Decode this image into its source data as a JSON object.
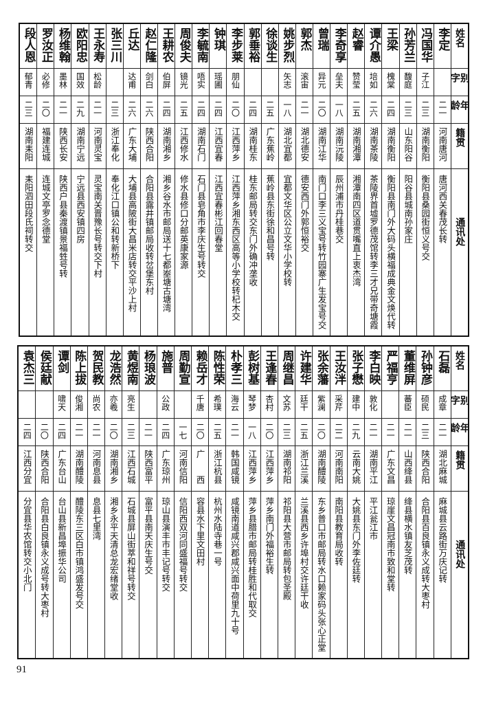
{
  "headers": {
    "name": "姓名",
    "alias": "别字",
    "age": "年龄",
    "native": "籍贯",
    "address": "通讯处"
  },
  "top_table": [
    {
      "name": "李定",
      "alias": "",
      "age": "二一",
      "native": "河南唐河",
      "address": "唐河西关春茂长转"
    },
    {
      "name": "冯国华",
      "alias": "子江",
      "age": "二三",
      "native": "湖南衡阳",
      "address": "衡阳县桑园街恒义号交"
    },
    {
      "name": "孙芳兰",
      "alias": "馥庭",
      "age": "二三",
      "native": "山东阳谷",
      "address": "阳谷县城南孙家庄"
    },
    {
      "name": "王梁",
      "alias": "槐棠",
      "age": "二四",
      "native": "湖南衡阳",
      "address": "衡阳县南门外大码头横福成典金文焕代转"
    },
    {
      "name": "谭介愚",
      "alias": "培如",
      "age": "二六",
      "native": "湖南茶陵",
      "address": "茶陵界首墟罗德茂馆转李三才兄带奇塘霞"
    },
    {
      "name": "赵睿",
      "alias": "赞莹",
      "age": "二五",
      "native": "湖南湘潭",
      "address": "湘潭南四区道贯嘴直上衷杰湾"
    },
    {
      "name": "李奇享",
      "alias": "垒夫",
      "age": "一八",
      "native": "湖南沅陵",
      "address": "辰州浦市丹桂巷交"
    },
    {
      "name": "曾瑞",
      "alias": "异元",
      "age": "二〇",
      "native": "湖南江华",
      "address": "南门口李三义宝号转竹园寨广生发宝号交"
    },
    {
      "name": "郭杰",
      "alias": "滚宙",
      "age": "二一",
      "native": "湖北德安",
      "address": "德安西门外郭恒裕交"
    },
    {
      "name": "姚步烈",
      "alias": "矢志",
      "age": "一八",
      "native": "湖北宜都",
      "address": "宜都文华区公立文华小学校转"
    },
    {
      "name": "徐谈生",
      "alias": "",
      "age": "二五",
      "native": "广东蕉岭",
      "address": "蕉岭县东街徐和昌号转"
    },
    {
      "name": "郭垂裕",
      "alias": "",
      "age": "二四",
      "native": "湖南桂东",
      "address": "桂东邮局转交东门外确冲垄收"
    },
    {
      "name": "李步莱",
      "alias": "朋仙",
      "age": "二〇",
      "native": "江西萍乡",
      "address": "江西萍乡湘东西区高等小学校转杞木交"
    },
    {
      "name": "钟琪",
      "alias": "瑶圃",
      "age": "二四",
      "native": "江西宜春",
      "address": "江西宜春彬江回春堂"
    },
    {
      "name": "李毓南",
      "alias": "唔实",
      "age": "二四",
      "native": "湖南石门",
      "address": "石门县皂角市李庆生号转交"
    },
    {
      "name": "周俊夫",
      "alias": "镜光",
      "age": "二五",
      "native": "江西修水",
      "address": "修水县修口分邮英康家源"
    },
    {
      "name": "王耕农",
      "alias": "伯屏",
      "age": "二四",
      "native": "湖南湘乡",
      "address": "湘乡谷水市邮局送十七都峚塘古塘湾"
    },
    {
      "name": "赵仁隆",
      "alias": "剑白",
      "age": "二六",
      "native": "陕西合阳",
      "address": "合阳县露井镇邮局收转岔堡东村"
    },
    {
      "name": "丘达",
      "alias": "达甫",
      "age": "二六",
      "native": "广东大埔",
      "address": "大埔县高陂街大昌米店转交平沙上村"
    },
    {
      "name": "张三川",
      "alias": "",
      "age": "二三",
      "native": "浙江奉化",
      "address": "奉化江口镇公和转新桥下"
    },
    {
      "name": "王永寿",
      "alias": "松龄",
      "age": "二一",
      "native": "河南灵宝",
      "address": "灵宝南关晋豫长号转交下村"
    },
    {
      "name": "欧阳忠",
      "alias": "国效",
      "age": "二九",
      "native": "湖南宁远",
      "address": "宁远县西安镇四房"
    },
    {
      "name": "杨维翰",
      "alias": "墨林",
      "age": "二一",
      "native": "陕西长安",
      "address": "陕西户县秦渡镇景福甡号转"
    },
    {
      "name": "罗汝正",
      "alias": "必修",
      "age": "二〇",
      "native": "福建连城",
      "address": "连城文亭罗念德堂"
    },
    {
      "name": "段人恩",
      "alias": "郁青",
      "age": "二三",
      "native": "湖南耒阳",
      "address": "耒阳泗田段氏祠转交"
    }
  ],
  "bottom_table": [
    {
      "name": "石磊",
      "alias": "成章",
      "age": "二一",
      "native": "湖北麻城",
      "address": "麻城县云路街万庆记转"
    },
    {
      "name": "孙钟彦",
      "alias": "硕民",
      "age": "二三",
      "native": "陕西合阳",
      "address": "合阳县百良镇永义成转大枣村"
    },
    {
      "name": "董维屏",
      "alias": "蕃臣",
      "age": "二一",
      "native": "山西绛县",
      "address": "绛县横水镇友芝茂转"
    },
    {
      "name": "严福亨",
      "alias": "",
      "age": "二一",
      "native": "广东文昌",
      "address": "琼崖文昌冠南市致和堂转"
    },
    {
      "name": "李白映",
      "alias": "敦化",
      "age": "二一",
      "native": "湖南平江",
      "address": "平江瓮江市"
    },
    {
      "name": "张子懋",
      "alias": "建中",
      "age": "二九",
      "native": "云南大姚",
      "address": "大姚县东门外李佐廷转"
    },
    {
      "name": "王汝泮",
      "alias": "采芹",
      "age": "二二",
      "native": "河南南阳",
      "address": "南阳县教育局收转"
    },
    {
      "name": "张余藩",
      "alias": "紫澜",
      "age": "二〇",
      "native": "湖南醴陵",
      "address": "东乡普口市邮局转水口赖家码头张心正堂"
    },
    {
      "name": "许建华",
      "alias": "廷干",
      "age": "二五",
      "native": "浙江兰溪",
      "address": "兰溪县西乡许埠村交许廷干收"
    },
    {
      "name": "周继昌",
      "alias": "文苏",
      "age": "二三",
      "native": "湖南祁阳",
      "address": "祁阳县大营市邮局转包圣殿"
    },
    {
      "name": "王逢春",
      "alias": "杏村",
      "age": "二〇",
      "native": "江西萍乡",
      "address": "萍乡南门外福裕生转"
    },
    {
      "name": "彭树基",
      "alias": "琴梦",
      "age": "一八",
      "native": "江西萍乡",
      "address": "萍乡县腊市邮局转桂胜和代取交"
    },
    {
      "name": "朴孝三",
      "alias": "海云",
      "age": "二一",
      "native": "韩国咸镜",
      "address": "咸镜南道咸兴郡咸兴面中荷里九十号"
    },
    {
      "name": "陈性荣",
      "alias": "希璞",
      "age": "二五",
      "native": "浙江杭县",
      "address": "杭州水陆寺巷一号"
    },
    {
      "name": "赖岳才",
      "alias": "千唐",
      "age": "二〇",
      "native": "广　　西",
      "address": "容县水下里文田村"
    },
    {
      "name": "周勤宣",
      "alias": "",
      "age": "一七",
      "native": "河南信阳",
      "address": "信阳西双河同盛福号转交"
    },
    {
      "name": "施普",
      "alias": "公政",
      "age": "二四",
      "native": "广东琼州",
      "address": "琼山县演丰市丰记号转交"
    },
    {
      "name": "杨琅波",
      "alias": "",
      "age": "二一",
      "native": "陕西富平",
      "address": "富平县南天庆生号交"
    },
    {
      "name": "黄煜南",
      "alias": "亮生",
      "age": "二三",
      "native": "江西石城",
      "address": "石城县屏山街萃和祥号转交"
    },
    {
      "name": "龙浩然",
      "alias": "亦羲",
      "age": "二〇",
      "native": "湖南湘乡",
      "address": "湘乡永平天清总龙宏绪堂收"
    },
    {
      "name": "贺民教",
      "alias": "尚农",
      "age": "二一",
      "native": "河南息县",
      "address": "息县七里湾"
    },
    {
      "name": "陈上拔",
      "alias": "俊湘",
      "age": "二一",
      "native": "湖南醴陵",
      "address": "醴陵东三区白市镇鸿盛发号交"
    },
    {
      "name": "谭剑",
      "alias": "啸天",
      "age": "二四",
      "native": "广东台山",
      "address": "台山县新昌埠振华公司"
    },
    {
      "name": "侯廷献",
      "alias": "",
      "age": "二〇",
      "native": "陕西合阳",
      "address": "合阳县白良镇永义成号转大枣村"
    },
    {
      "name": "袁杰三",
      "alias": "",
      "age": "二四",
      "native": "江西分宜",
      "address": "分宜县华农馆转交小北门"
    }
  ],
  "page_number": "91"
}
